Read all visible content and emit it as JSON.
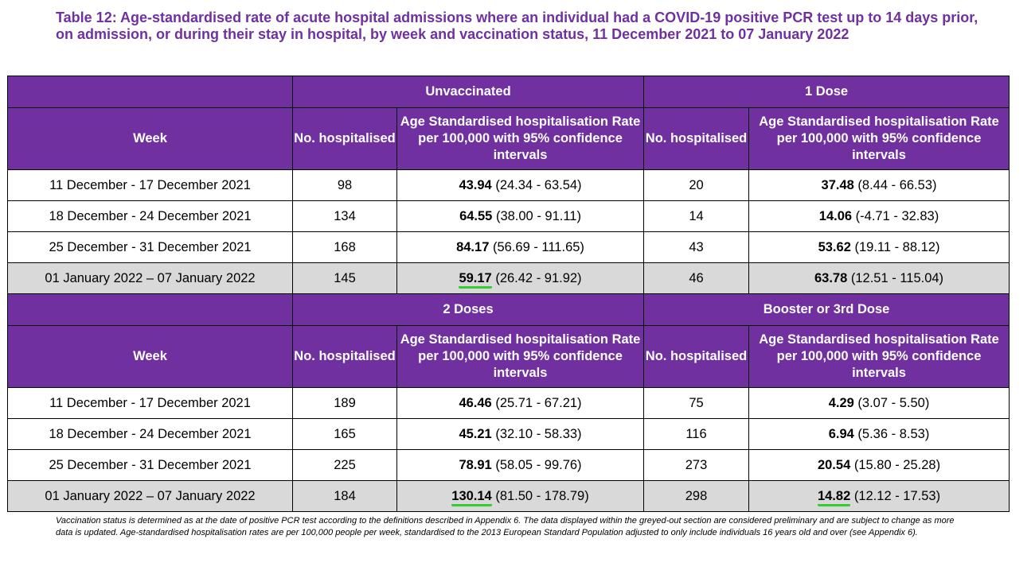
{
  "title": "Table 12: Age-standardised rate of acute hospital admissions where an individual had a COVID-19 positive PCR test up to 14 days prior, on admission, or during their stay in hospital, by week and vaccination status, 11 December 2021 to 07 January 2022",
  "headers": {
    "week": "Week",
    "no_hospitalised": "No. hospitalised",
    "rate": "Age Standardised hospitalisation Rate per 100,000 with 95% confidence intervals"
  },
  "sections": [
    {
      "groups": [
        "Unvaccinated",
        "1 Dose"
      ],
      "rows": [
        {
          "week": "11 December - 17 December 2021",
          "grey": false,
          "a": {
            "n": "98",
            "rate": "43.94",
            "ci": " (24.34 - 63.54)",
            "hl": false
          },
          "b": {
            "n": "20",
            "rate": "37.48",
            "ci": " (8.44 - 66.53)",
            "hl": false
          }
        },
        {
          "week": "18 December - 24 December 2021",
          "grey": false,
          "a": {
            "n": "134",
            "rate": "64.55",
            "ci": " (38.00 - 91.11)",
            "hl": false
          },
          "b": {
            "n": "14",
            "rate": "14.06",
            "ci": " (-4.71 - 32.83)",
            "hl": false
          }
        },
        {
          "week": "25 December - 31 December 2021",
          "grey": false,
          "a": {
            "n": "168",
            "rate": "84.17",
            "ci": " (56.69 - 111.65)",
            "hl": false
          },
          "b": {
            "n": "43",
            "rate": "53.62",
            "ci": " (19.11 - 88.12)",
            "hl": false
          }
        },
        {
          "week": "01 January 2022 – 07 January 2022",
          "grey": true,
          "a": {
            "n": "145",
            "rate": "59.17",
            "ci": " (26.42 - 91.92)",
            "hl": true
          },
          "b": {
            "n": "46",
            "rate": "63.78",
            "ci": " (12.51 - 115.04)",
            "hl": false
          }
        }
      ]
    },
    {
      "groups": [
        "2 Doses",
        "Booster or 3rd Dose"
      ],
      "rows": [
        {
          "week": "11 December - 17 December 2021",
          "grey": false,
          "a": {
            "n": "189",
            "rate": "46.46",
            "ci": " (25.71 - 67.21)",
            "hl": false
          },
          "b": {
            "n": "75",
            "rate": "4.29",
            "ci": " (3.07 - 5.50)",
            "hl": false
          }
        },
        {
          "week": "18 December - 24 December 2021",
          "grey": false,
          "a": {
            "n": "165",
            "rate": "45.21",
            "ci": " (32.10 - 58.33)",
            "hl": false
          },
          "b": {
            "n": "116",
            "rate": "6.94",
            "ci": " (5.36 - 8.53)",
            "hl": false
          }
        },
        {
          "week": "25 December - 31 December 2021",
          "grey": false,
          "a": {
            "n": "225",
            "rate": "78.91",
            "ci": " (58.05 - 99.76)",
            "hl": false
          },
          "b": {
            "n": "273",
            "rate": "20.54",
            "ci": " (15.80 - 25.28)",
            "hl": false
          }
        },
        {
          "week": "01 January 2022 – 07 January 2022",
          "grey": true,
          "a": {
            "n": "184",
            "rate": "130.14",
            "ci": " (81.50 - 178.79)",
            "hl": true
          },
          "b": {
            "n": "298",
            "rate": "14.82",
            "ci": " (12.12 - 17.53)",
            "hl": true
          }
        }
      ]
    }
  ],
  "footnote": "Vaccination status is determined as at the date of positive PCR test according to the definitions described in Appendix 6. The data displayed within the greyed-out section are considered preliminary and are subject to change as more data is updated. Age-standardised hospitalisation rates are per 100,000 people per week, standardised to the 2013 European Standard Population adjusted to only include individuals 16 years old and over (see Appendix 6).",
  "colors": {
    "header_purple": "#7030a0",
    "preliminary_grey": "#d9d9d9",
    "highlight_green": "#33cc33"
  }
}
